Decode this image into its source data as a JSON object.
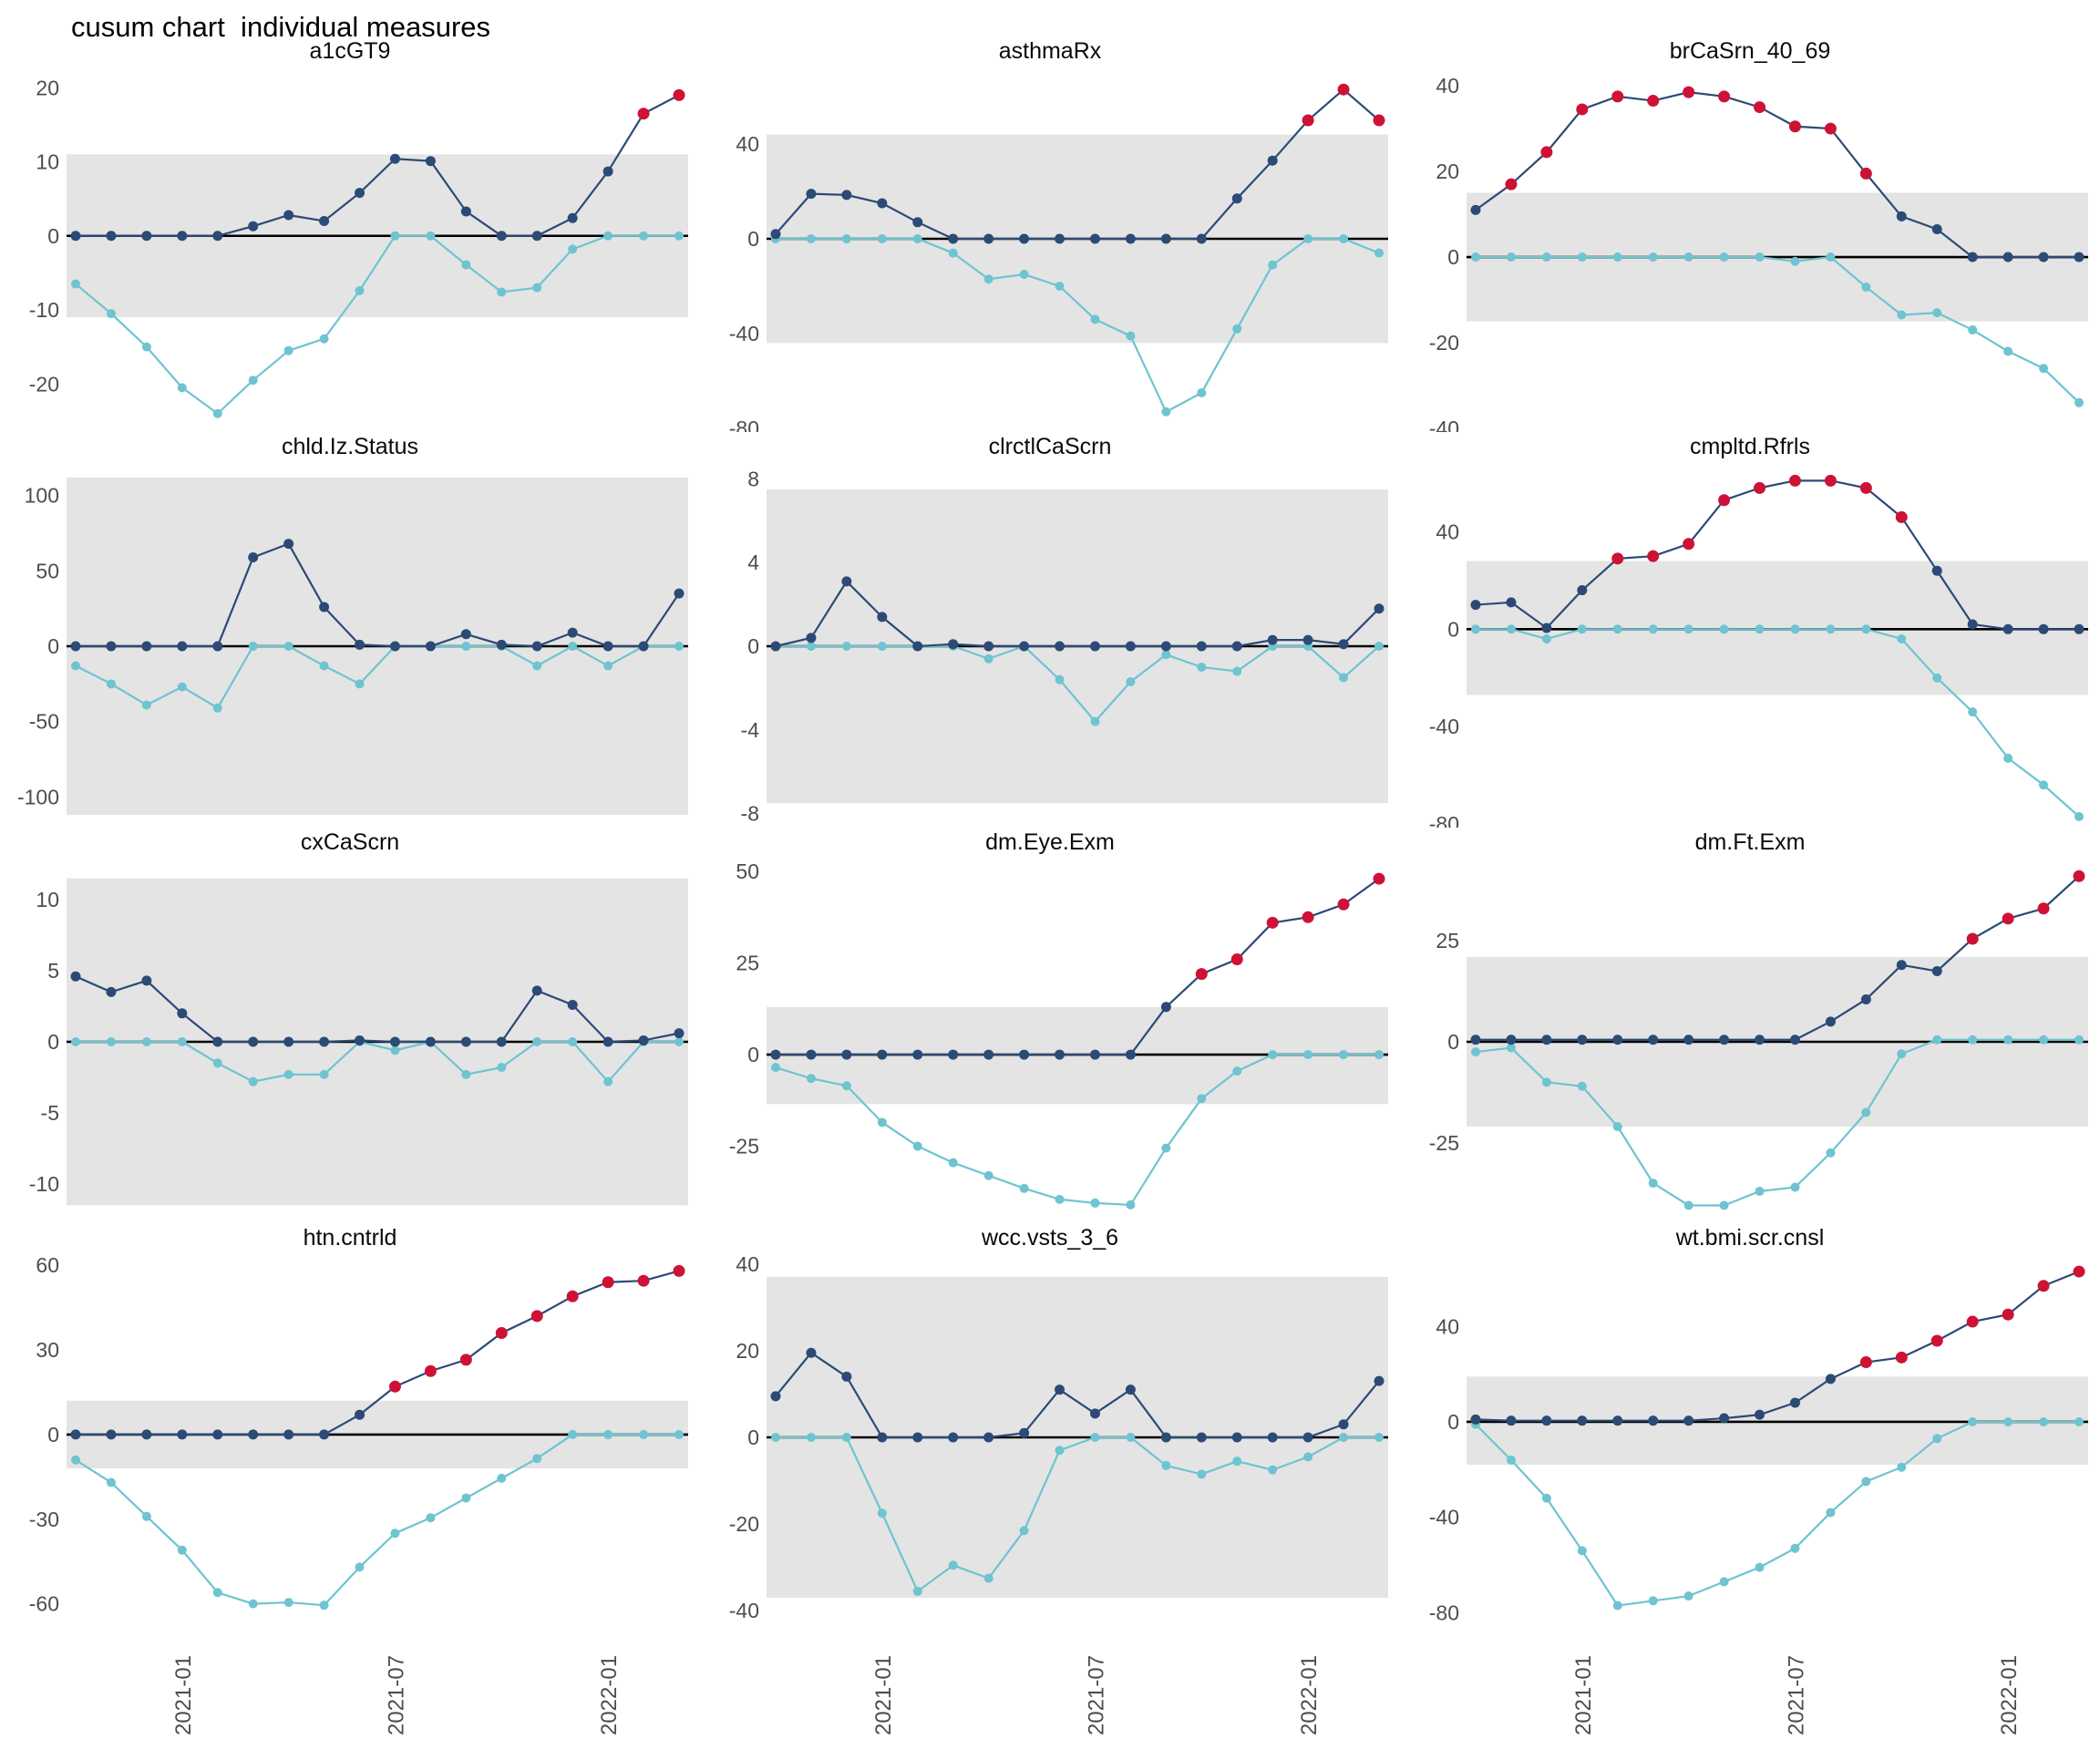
{
  "title": "cusum chart  individual measures",
  "colors": {
    "upper_line": "#2C4A76",
    "lower_line": "#6EC4D0",
    "signal_point": "#CE1235",
    "control_band": "#E4E4E4",
    "zero_line": "#000000",
    "axis_text": "#4D4D4D",
    "title_text": "#000000"
  },
  "x_axis": {
    "tick_labels": [
      "2021-01",
      "2021-07",
      "2022-01"
    ],
    "tick_indices": [
      3,
      9,
      15
    ],
    "n_points": 18,
    "label_rotation_deg": 90
  },
  "chart_data": [
    {
      "type": "line",
      "title": "a1cGT9",
      "yticks": [
        20,
        10,
        0,
        -10,
        -20
      ],
      "ylim": [
        -26,
        22
      ],
      "band": [
        -11,
        11
      ],
      "upper": [
        0,
        0,
        0,
        0,
        0,
        1.3,
        2.8,
        2,
        5.8,
        10.4,
        10.1,
        3.3,
        0,
        0,
        2.4,
        8.7,
        16.5,
        19
      ],
      "lower": [
        -6.5,
        -10.5,
        -15,
        -20.5,
        -24,
        -19.5,
        -15.5,
        -13.9,
        -7.4,
        0,
        0,
        -3.9,
        -7.6,
        -7,
        -1.8,
        0,
        0,
        0
      ],
      "upper_signal_idx": [
        16,
        17
      ]
    },
    {
      "type": "line",
      "title": "asthmaRx",
      "yticks": [
        40,
        0,
        -40,
        -80
      ],
      "ylim": [
        -80,
        70
      ],
      "band": [
        -44,
        44
      ],
      "upper": [
        2,
        19,
        18.5,
        15,
        7,
        0,
        0,
        0,
        0,
        0,
        0,
        0,
        0,
        17,
        33,
        50,
        63,
        50
      ],
      "lower": [
        0,
        0,
        0,
        0,
        0,
        -6,
        -17,
        -15,
        -20,
        -34,
        -41,
        -73,
        -65,
        -38,
        -11,
        0,
        0,
        -6
      ],
      "upper_signal_idx": [
        15,
        16,
        17
      ]
    },
    {
      "type": "line",
      "title": "brCaSrn_40_69",
      "yticks": [
        40,
        20,
        0,
        -20,
        -40
      ],
      "ylim": [
        -40,
        43
      ],
      "band": [
        -15,
        15
      ],
      "upper": [
        11,
        17,
        24.5,
        34.5,
        37.5,
        36.5,
        38.5,
        37.5,
        35,
        30.5,
        30,
        19.5,
        9.5,
        6.5,
        0,
        0,
        0,
        0
      ],
      "lower": [
        0,
        0,
        0,
        0,
        0,
        0,
        0,
        0,
        0,
        -1,
        0,
        -7,
        -13.5,
        -13,
        -17,
        -22,
        -26,
        -34
      ],
      "upper_signal_idx": [
        1,
        2,
        3,
        4,
        5,
        6,
        7,
        8,
        9,
        10,
        11
      ]
    },
    {
      "type": "line",
      "title": "chld.Iz.Status",
      "yticks": [
        100,
        50,
        0,
        -50,
        -100
      ],
      "ylim": [
        -118,
        118
      ],
      "band": [
        -112,
        112
      ],
      "upper": [
        0,
        0,
        0,
        0,
        0,
        59,
        68,
        26,
        1,
        0,
        0,
        8,
        1,
        0,
        9,
        0,
        0,
        35
      ],
      "lower": [
        -13,
        -25,
        -39,
        -27,
        -41,
        0,
        0,
        -13,
        -25,
        0,
        0,
        0,
        0,
        -13,
        0,
        -13,
        0,
        0
      ],
      "upper_signal_idx": []
    },
    {
      "type": "line",
      "title": "clrctlCaScrn",
      "yticks": [
        8,
        4,
        0,
        -4,
        -8
      ],
      "ylim": [
        -8.5,
        8.5
      ],
      "band": [
        -7.5,
        7.5
      ],
      "upper": [
        0,
        0.4,
        3.1,
        1.4,
        0,
        0.1,
        0,
        0,
        0,
        0,
        0,
        0,
        0,
        0,
        0.3,
        0.3,
        0.1,
        1.8
      ],
      "lower": [
        0,
        0,
        0,
        0,
        0,
        0,
        -0.6,
        0,
        -1.6,
        -3.6,
        -1.7,
        -0.4,
        -1,
        -1.2,
        0,
        0,
        -1.5,
        0
      ],
      "upper_signal_idx": []
    },
    {
      "type": "line",
      "title": "cmpltd.Rfrls",
      "yticks": [
        40,
        0,
        -40,
        -80
      ],
      "ylim": [
        -80,
        66
      ],
      "band": [
        -27,
        28
      ],
      "upper": [
        10,
        11,
        0.5,
        16,
        29,
        30,
        35,
        53,
        58,
        61,
        61,
        58,
        46,
        24,
        2,
        0,
        0,
        0
      ],
      "lower": [
        0,
        0,
        -4,
        0,
        0,
        0,
        0,
        0,
        0,
        0,
        0,
        0,
        -4,
        -20,
        -34,
        -53,
        -64,
        -77
      ],
      "upper_signal_idx": [
        4,
        5,
        6,
        7,
        8,
        9,
        10,
        11,
        12
      ]
    },
    {
      "type": "line",
      "title": "cxCaScrn",
      "yticks": [
        10,
        5,
        0,
        -5,
        -10
      ],
      "ylim": [
        -12.5,
        12.5
      ],
      "band": [
        -11.5,
        11.5
      ],
      "upper": [
        4.6,
        3.5,
        4.3,
        2,
        0,
        0,
        0,
        0,
        0.1,
        0,
        0,
        0,
        0,
        3.6,
        2.6,
        0,
        0.1,
        0.6
      ],
      "lower": [
        0,
        0,
        0,
        0,
        -1.5,
        -2.8,
        -2.3,
        -2.3,
        0,
        -0.6,
        0,
        -2.3,
        -1.8,
        0,
        0,
        -2.8,
        0,
        0
      ],
      "upper_signal_idx": []
    },
    {
      "type": "line",
      "title": "dm.Eye.Exm",
      "yticks": [
        50,
        25,
        0,
        -25
      ],
      "ylim": [
        -45,
        52
      ],
      "band": [
        -13.5,
        13
      ],
      "upper": [
        0,
        0,
        0,
        0,
        0,
        0,
        0,
        0,
        0,
        0,
        0,
        13,
        22,
        26,
        36,
        37.5,
        41,
        48
      ],
      "lower": [
        -3.5,
        -6.5,
        -8.5,
        -18.5,
        -25,
        -29.5,
        -33,
        -36.5,
        -39.5,
        -40.5,
        -41,
        -25.5,
        -12,
        -4.5,
        0,
        0,
        0,
        0
      ],
      "upper_signal_idx": [
        12,
        13,
        14,
        15,
        16,
        17
      ]
    },
    {
      "type": "line",
      "title": "dm.Ft.Exm",
      "yticks": [
        25,
        0,
        -25
      ],
      "ylim": [
        -44,
        44
      ],
      "band": [
        -21,
        21
      ],
      "upper": [
        0.5,
        0.5,
        0.5,
        0.5,
        0.5,
        0.5,
        0.5,
        0.5,
        0.5,
        0.5,
        5,
        10.5,
        19,
        17.5,
        25.5,
        30.5,
        33,
        41
      ],
      "lower": [
        -2.5,
        -1.5,
        -10,
        -11,
        -21,
        -35,
        -40.5,
        -40.5,
        -37,
        -36,
        -27.5,
        -17.5,
        -3,
        0.5,
        0.5,
        0.5,
        0.5,
        0.5
      ],
      "upper_signal_idx": [
        14,
        15,
        16,
        17
      ]
    },
    {
      "type": "line",
      "title": "htn.cntrld",
      "yticks": [
        60,
        30,
        0,
        -30,
        -60
      ],
      "ylim": [
        -64,
        62
      ],
      "band": [
        -12,
        12
      ],
      "upper": [
        0,
        0,
        0,
        0,
        0,
        0,
        0,
        0,
        7,
        17,
        22.5,
        26.5,
        36,
        42,
        49,
        54,
        54.5,
        58
      ],
      "lower": [
        -9,
        -17,
        -29,
        -41,
        -56,
        -60,
        -59.5,
        -60.5,
        -47,
        -35,
        -29.5,
        -22.5,
        -15.5,
        -8.5,
        0,
        0,
        0,
        0
      ],
      "upper_signal_idx": [
        9,
        10,
        11,
        12,
        13,
        14,
        15,
        16,
        17
      ]
    },
    {
      "type": "line",
      "title": "wcc.vsts_3_6",
      "yticks": [
        40,
        20,
        0,
        -20,
        -40
      ],
      "ylim": [
        -41,
        41
      ],
      "band": [
        -37,
        37
      ],
      "upper": [
        9.5,
        19.5,
        14,
        0,
        0,
        0,
        0,
        1,
        11,
        5.5,
        11,
        0,
        0,
        0,
        0,
        0,
        3,
        13
      ],
      "lower": [
        0,
        0,
        0,
        -17.5,
        -35.5,
        -29.5,
        -32.5,
        -21.5,
        -3,
        0,
        0,
        -6.5,
        -8.5,
        -5.5,
        -7.5,
        -4.5,
        0,
        0
      ],
      "upper_signal_idx": []
    },
    {
      "type": "line",
      "title": "wt.bmi.scr.cnsl",
      "yticks": [
        40,
        0,
        -40,
        -80
      ],
      "ylim": [
        -81,
        68
      ],
      "band": [
        -18,
        19
      ],
      "upper": [
        1,
        0.5,
        0.5,
        0.5,
        0.5,
        0.5,
        0.5,
        1.5,
        3,
        8,
        18,
        25,
        27,
        34,
        42,
        45,
        57,
        63
      ],
      "lower": [
        -1,
        -16,
        -32,
        -54,
        -77,
        -75,
        -73,
        -67,
        -61,
        -53,
        -38,
        -25,
        -19,
        -7,
        0,
        0,
        0,
        0
      ],
      "upper_signal_idx": [
        11,
        12,
        13,
        14,
        15,
        16,
        17
      ]
    }
  ]
}
